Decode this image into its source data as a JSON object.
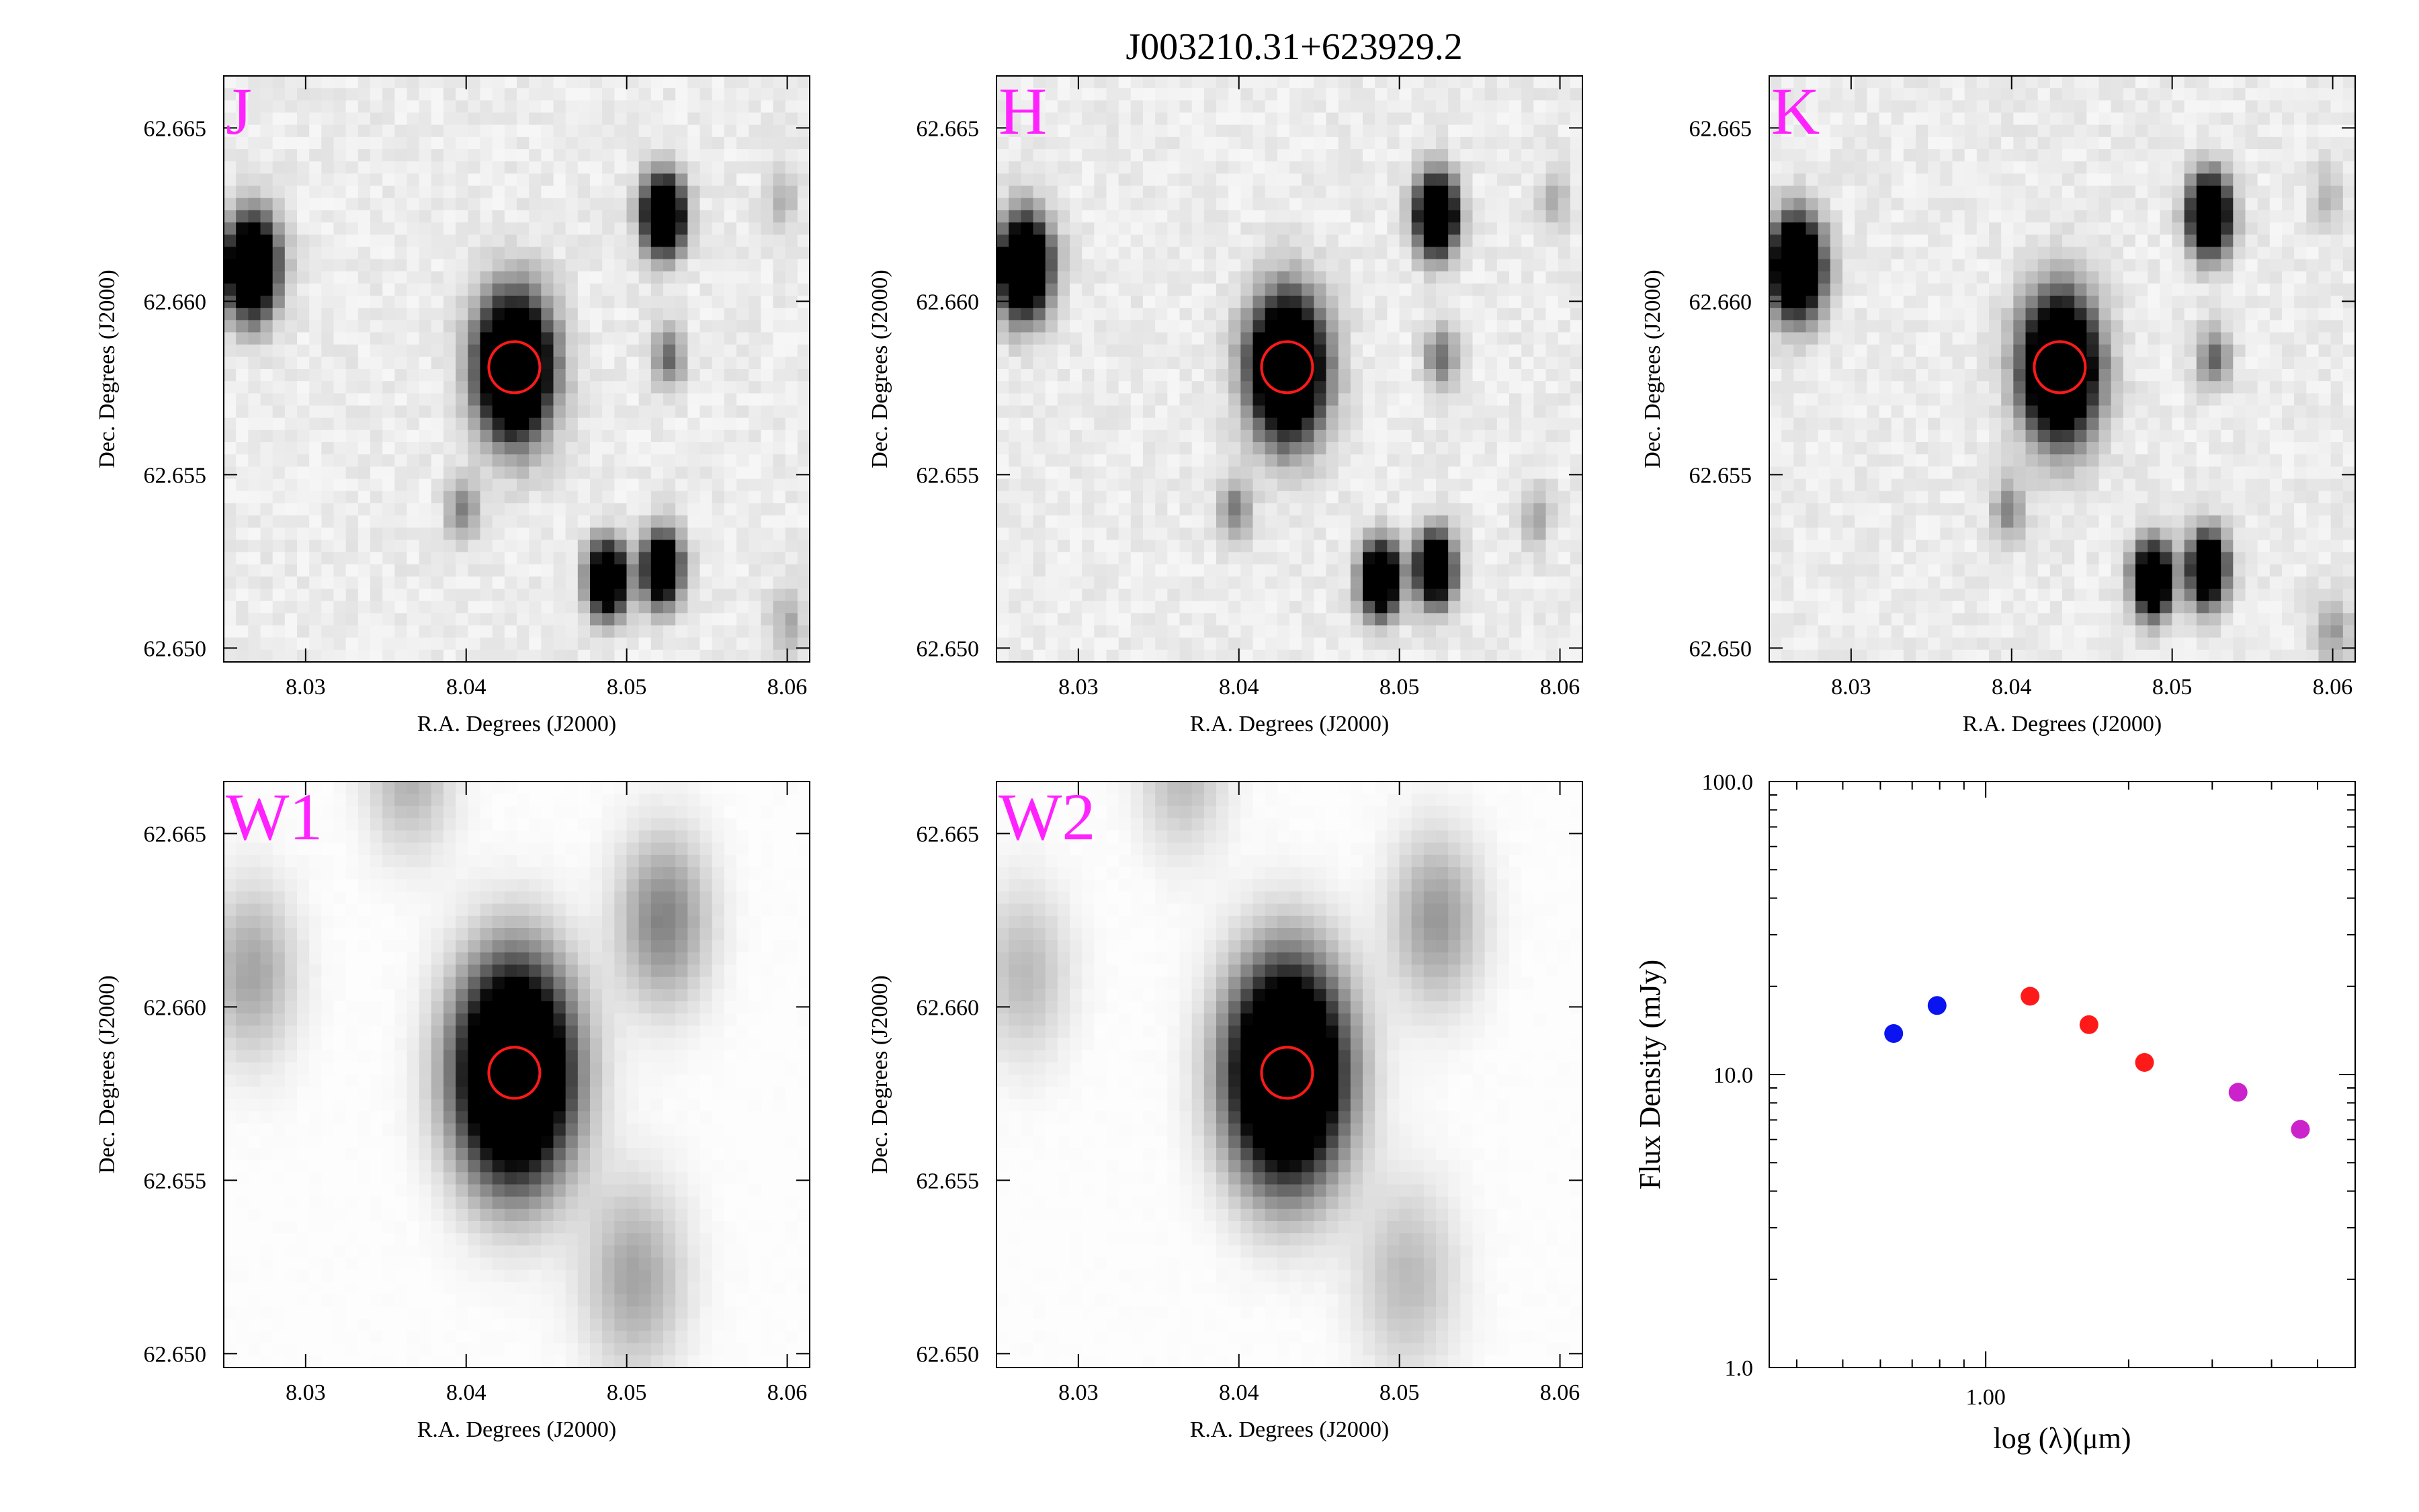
{
  "figure": {
    "title": "J003210.31+623929.2"
  },
  "cutouts": {
    "xlabel": "R.A. Degrees (J2000)",
    "ylabel": "Dec. Degrees (J2000)",
    "ra_ticks": [
      "8.03",
      "8.04",
      "8.05",
      "8.06"
    ],
    "ra_tick_values": [
      8.03,
      8.04,
      8.05,
      8.06
    ],
    "dec_ticks": [
      "62.650",
      "62.655",
      "62.660",
      "62.665"
    ],
    "dec_tick_values": [
      62.65,
      62.655,
      62.66,
      62.665
    ],
    "ra_range": [
      8.0249,
      8.0614
    ],
    "dec_range": [
      62.6496,
      62.6665
    ],
    "target": {
      "ra": 8.043,
      "dec": 62.6581
    },
    "marker_color": "#ff1a1a",
    "band_label_color": "#ff22ff",
    "panels": [
      {
        "band": "J",
        "sources": [
          {
            "ra": 8.043,
            "dec": 62.6581,
            "amp": 1.0,
            "sigma": 0.00135
          },
          {
            "ra": 8.0266,
            "dec": 62.661,
            "amp": 0.95,
            "sigma": 0.00095
          },
          {
            "ra": 8.0523,
            "dec": 62.6625,
            "amp": 0.9,
            "sigma": 0.00075
          },
          {
            "ra": 8.0488,
            "dec": 62.652,
            "amp": 0.85,
            "sigma": 0.0007
          },
          {
            "ra": 8.0522,
            "dec": 62.6523,
            "amp": 0.8,
            "sigma": 0.0007
          },
          {
            "ra": 8.0526,
            "dec": 62.6584,
            "amp": 0.25,
            "sigma": 0.0006
          },
          {
            "ra": 8.0398,
            "dec": 62.654,
            "amp": 0.22,
            "sigma": 0.0006
          },
          {
            "ra": 8.0597,
            "dec": 62.663,
            "amp": 0.12,
            "sigma": 0.0006
          },
          {
            "ra": 8.06,
            "dec": 62.6507,
            "amp": 0.12,
            "sigma": 0.0007
          }
        ]
      },
      {
        "band": "H",
        "sources": [
          {
            "ra": 8.043,
            "dec": 62.6581,
            "amp": 1.0,
            "sigma": 0.00135
          },
          {
            "ra": 8.0266,
            "dec": 62.661,
            "amp": 0.95,
            "sigma": 0.00095
          },
          {
            "ra": 8.0523,
            "dec": 62.6625,
            "amp": 0.9,
            "sigma": 0.00075
          },
          {
            "ra": 8.0488,
            "dec": 62.652,
            "amp": 0.85,
            "sigma": 0.0007
          },
          {
            "ra": 8.0522,
            "dec": 62.6523,
            "amp": 0.8,
            "sigma": 0.0007
          },
          {
            "ra": 8.0526,
            "dec": 62.6584,
            "amp": 0.25,
            "sigma": 0.0006
          },
          {
            "ra": 8.0398,
            "dec": 62.654,
            "amp": 0.22,
            "sigma": 0.0006
          },
          {
            "ra": 8.0597,
            "dec": 62.663,
            "amp": 0.12,
            "sigma": 0.0006
          },
          {
            "ra": 8.0585,
            "dec": 62.6538,
            "amp": 0.14,
            "sigma": 0.0006
          }
        ]
      },
      {
        "band": "K",
        "sources": [
          {
            "ra": 8.043,
            "dec": 62.6581,
            "amp": 1.0,
            "sigma": 0.00135
          },
          {
            "ra": 8.0266,
            "dec": 62.661,
            "amp": 0.95,
            "sigma": 0.00095
          },
          {
            "ra": 8.0523,
            "dec": 62.6625,
            "amp": 0.9,
            "sigma": 0.00075
          },
          {
            "ra": 8.0488,
            "dec": 62.652,
            "amp": 0.85,
            "sigma": 0.0007
          },
          {
            "ra": 8.0522,
            "dec": 62.6523,
            "amp": 0.8,
            "sigma": 0.0007
          },
          {
            "ra": 8.0526,
            "dec": 62.6584,
            "amp": 0.25,
            "sigma": 0.0006
          },
          {
            "ra": 8.0398,
            "dec": 62.654,
            "amp": 0.2,
            "sigma": 0.0006
          },
          {
            "ra": 8.0597,
            "dec": 62.663,
            "amp": 0.12,
            "sigma": 0.0006
          },
          {
            "ra": 8.06,
            "dec": 62.6505,
            "amp": 0.15,
            "sigma": 0.0007
          }
        ]
      },
      {
        "band": "W1",
        "sources": [
          {
            "ra": 8.043,
            "dec": 62.6581,
            "amp": 1.0,
            "sigma": 0.0021
          },
          {
            "ra": 8.0523,
            "dec": 62.6625,
            "amp": 0.22,
            "sigma": 0.0017
          },
          {
            "ra": 8.0266,
            "dec": 62.661,
            "amp": 0.16,
            "sigma": 0.0017
          },
          {
            "ra": 8.0505,
            "dec": 62.6522,
            "amp": 0.16,
            "sigma": 0.0019
          },
          {
            "ra": 8.0365,
            "dec": 62.6668,
            "amp": 0.14,
            "sigma": 0.0016
          }
        ]
      },
      {
        "band": "W2",
        "sources": [
          {
            "ra": 8.043,
            "dec": 62.6581,
            "amp": 1.0,
            "sigma": 0.0021
          },
          {
            "ra": 8.0523,
            "dec": 62.6625,
            "amp": 0.18,
            "sigma": 0.0017
          },
          {
            "ra": 8.0266,
            "dec": 62.661,
            "amp": 0.12,
            "sigma": 0.0017
          },
          {
            "ra": 8.0505,
            "dec": 62.6522,
            "amp": 0.12,
            "sigma": 0.0019
          },
          {
            "ra": 8.0365,
            "dec": 62.6668,
            "amp": 0.12,
            "sigma": 0.0016
          }
        ]
      }
    ]
  },
  "chart_data": {
    "type": "scatter",
    "xlabel": "log (λ)(μm)",
    "ylabel": "Flux Density (mJy)",
    "x_scale": "log",
    "y_scale": "log",
    "xlim": [
      0.35,
      6.0
    ],
    "ylim": [
      1.0,
      100.0
    ],
    "x_tick_labels": [
      {
        "value": 1.0,
        "label": "1.00"
      }
    ],
    "y_tick_labels": [
      {
        "value": 1.0,
        "label": "1.0"
      },
      {
        "value": 10.0,
        "label": "10.0"
      },
      {
        "value": 100.0,
        "label": "100.0"
      }
    ],
    "series": [
      {
        "color": "#0a14f0",
        "x": [
          0.64,
          0.79
        ],
        "y": [
          13.8,
          17.2
        ]
      },
      {
        "color": "#ff1a1a",
        "x": [
          1.24,
          1.65,
          2.16
        ],
        "y": [
          18.5,
          14.8,
          11.0
        ]
      },
      {
        "color": "#cc22cc",
        "x": [
          3.4,
          4.6
        ],
        "y": [
          8.7,
          6.5
        ]
      }
    ]
  }
}
